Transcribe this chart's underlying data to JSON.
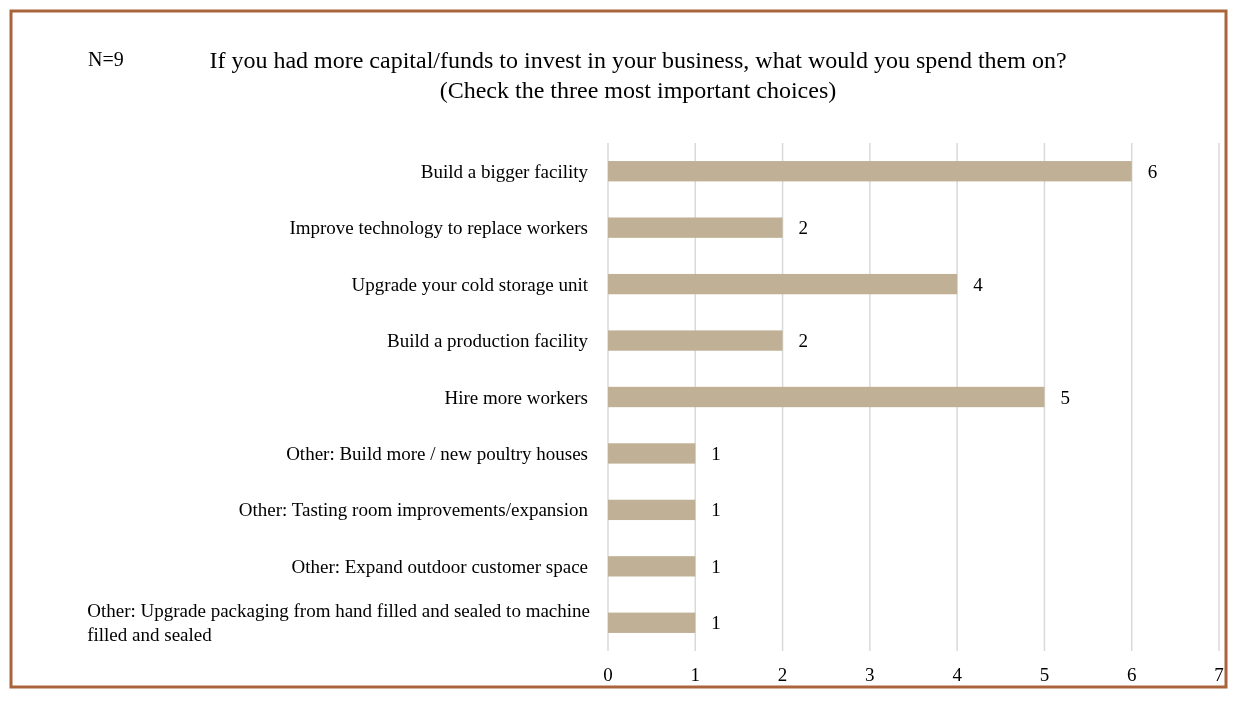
{
  "chart_data": {
    "type": "bar",
    "orientation": "horizontal",
    "title": "If you had more capital/funds to invest in your business, what would you spend them on? (Check the three most important choices)",
    "annotations": [
      "N=9"
    ],
    "categories": [
      "Build a bigger facility",
      "Improve technology to replace workers",
      "Upgrade your cold storage unit",
      "Build a production facility",
      "Hire more workers",
      "Other: Build more / new poultry houses",
      "Other: Tasting room improvements/expansion",
      "Other: Expand outdoor customer space",
      "Other: Upgrade packaging from hand filled and sealed to machine filled and sealed"
    ],
    "values": [
      6,
      2,
      4,
      2,
      5,
      1,
      1,
      1,
      1
    ],
    "color": "#bfb096",
    "xlim": [
      0,
      7
    ],
    "xticks": [
      0,
      1,
      2,
      3,
      4,
      5,
      6,
      7
    ],
    "grid": "x",
    "data_labels": true
  }
}
